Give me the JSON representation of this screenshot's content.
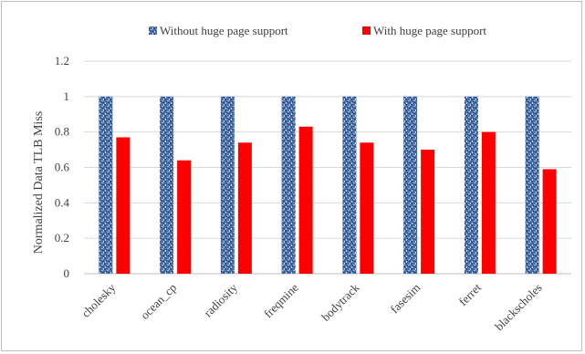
{
  "chart_data": {
    "type": "bar",
    "ylabel": "Normalized Data TLB Miss",
    "xlabel": "",
    "ylim": [
      0,
      1.2
    ],
    "yticks": [
      "0",
      "0.2",
      "0.4",
      "0.6",
      "0.8",
      "1",
      "1.2"
    ],
    "grid": true,
    "legend_position": "top",
    "categories": [
      "cholesky",
      "ocean_cp",
      "radiosity",
      "freqmine",
      "bodytrack",
      "fasesim",
      "ferret",
      "blackscholes"
    ],
    "series": [
      {
        "name": "Without huge page support",
        "color": "#4a6fa5",
        "pattern": "textured",
        "values": [
          1,
          1,
          1,
          1,
          1,
          1,
          1,
          1
        ]
      },
      {
        "name": "With huge page support",
        "color": "#ff0000",
        "pattern": "solid",
        "values": [
          0.77,
          0.64,
          0.74,
          0.83,
          0.74,
          0.7,
          0.8,
          0.59
        ]
      }
    ]
  }
}
